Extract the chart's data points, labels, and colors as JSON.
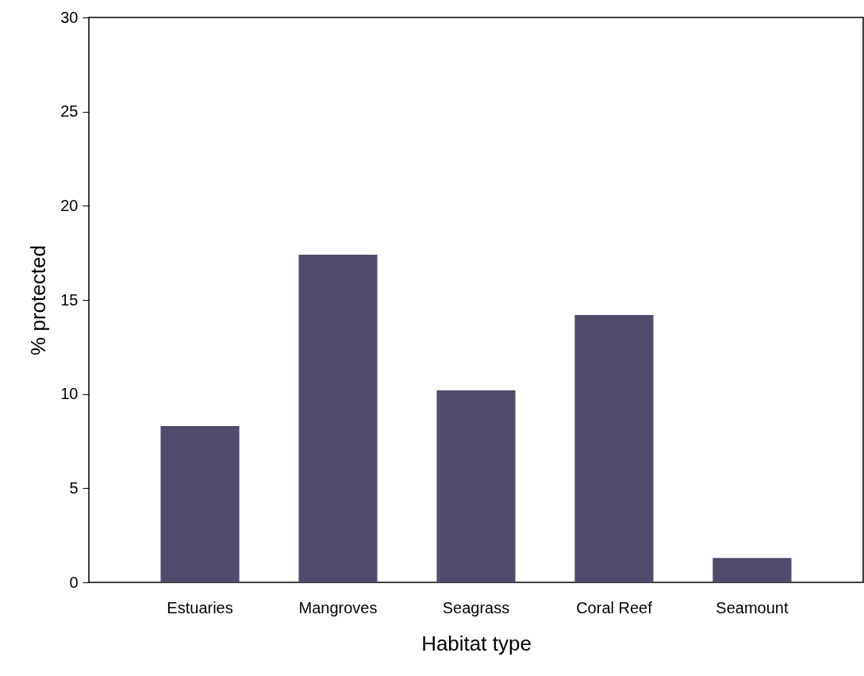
{
  "chart_data": {
    "type": "bar",
    "xlabel": "Habitat type",
    "ylabel": "% protected",
    "categories": [
      "Estuaries",
      "Mangroves",
      "Seagrass",
      "Coral Reef",
      "Seamount"
    ],
    "values": [
      8.3,
      17.4,
      10.2,
      14.2,
      1.3
    ],
    "color": "#524a6a",
    "ylim": [
      0,
      30
    ],
    "yticks": [
      0,
      5,
      10,
      15,
      20,
      25,
      30
    ],
    "grid": false
  }
}
